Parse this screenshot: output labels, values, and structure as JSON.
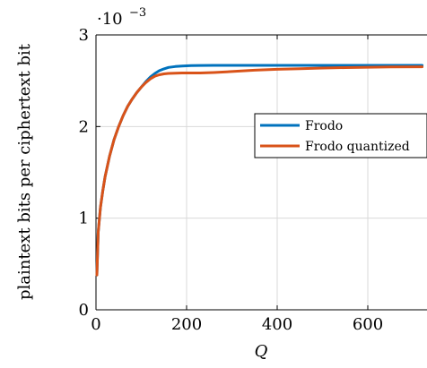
{
  "chart_data": {
    "type": "line",
    "xlabel": "Q",
    "ylabel": "plaintext bits per ciphertext bit",
    "y_scale_label": "·10",
    "y_scale_exponent": "−3",
    "xlim": [
      0,
      720
    ],
    "ylim": [
      0,
      3
    ],
    "x_ticks": [
      "0",
      "200",
      "400",
      "600"
    ],
    "x_tick_values": [
      0,
      200,
      400,
      600
    ],
    "y_ticks": [
      "0",
      "1",
      "2",
      "3"
    ],
    "y_tick_values": [
      0,
      1,
      2,
      3
    ],
    "grid": true,
    "legend_position": "right",
    "series": [
      {
        "name": "Frodo",
        "color": "#0072BD",
        "x": [
          2,
          5,
          10,
          15,
          20,
          30,
          40,
          50,
          60,
          70,
          80,
          90,
          100,
          110,
          120,
          130,
          140,
          150,
          160,
          175,
          190,
          210,
          230,
          260,
          300,
          400,
          500,
          600,
          720
        ],
        "y": [
          0.38,
          0.85,
          1.12,
          1.3,
          1.45,
          1.68,
          1.86,
          2.0,
          2.12,
          2.22,
          2.3,
          2.37,
          2.43,
          2.49,
          2.54,
          2.58,
          2.61,
          2.63,
          2.645,
          2.655,
          2.66,
          2.665,
          2.667,
          2.668,
          2.668,
          2.668,
          2.668,
          2.668,
          2.668
        ]
      },
      {
        "name": "Frodo quantized",
        "color": "#D95319",
        "x": [
          2,
          5,
          10,
          15,
          20,
          30,
          40,
          50,
          60,
          70,
          80,
          90,
          100,
          110,
          120,
          130,
          140,
          150,
          160,
          175,
          190,
          210,
          230,
          260,
          300,
          350,
          400,
          450,
          500,
          550,
          600,
          650,
          720
        ],
        "y": [
          0.38,
          0.85,
          1.12,
          1.3,
          1.45,
          1.68,
          1.86,
          2.0,
          2.12,
          2.22,
          2.3,
          2.37,
          2.43,
          2.48,
          2.52,
          2.55,
          2.565,
          2.575,
          2.58,
          2.583,
          2.585,
          2.585,
          2.585,
          2.59,
          2.6,
          2.615,
          2.625,
          2.632,
          2.638,
          2.643,
          2.647,
          2.65,
          2.652
        ]
      }
    ]
  }
}
